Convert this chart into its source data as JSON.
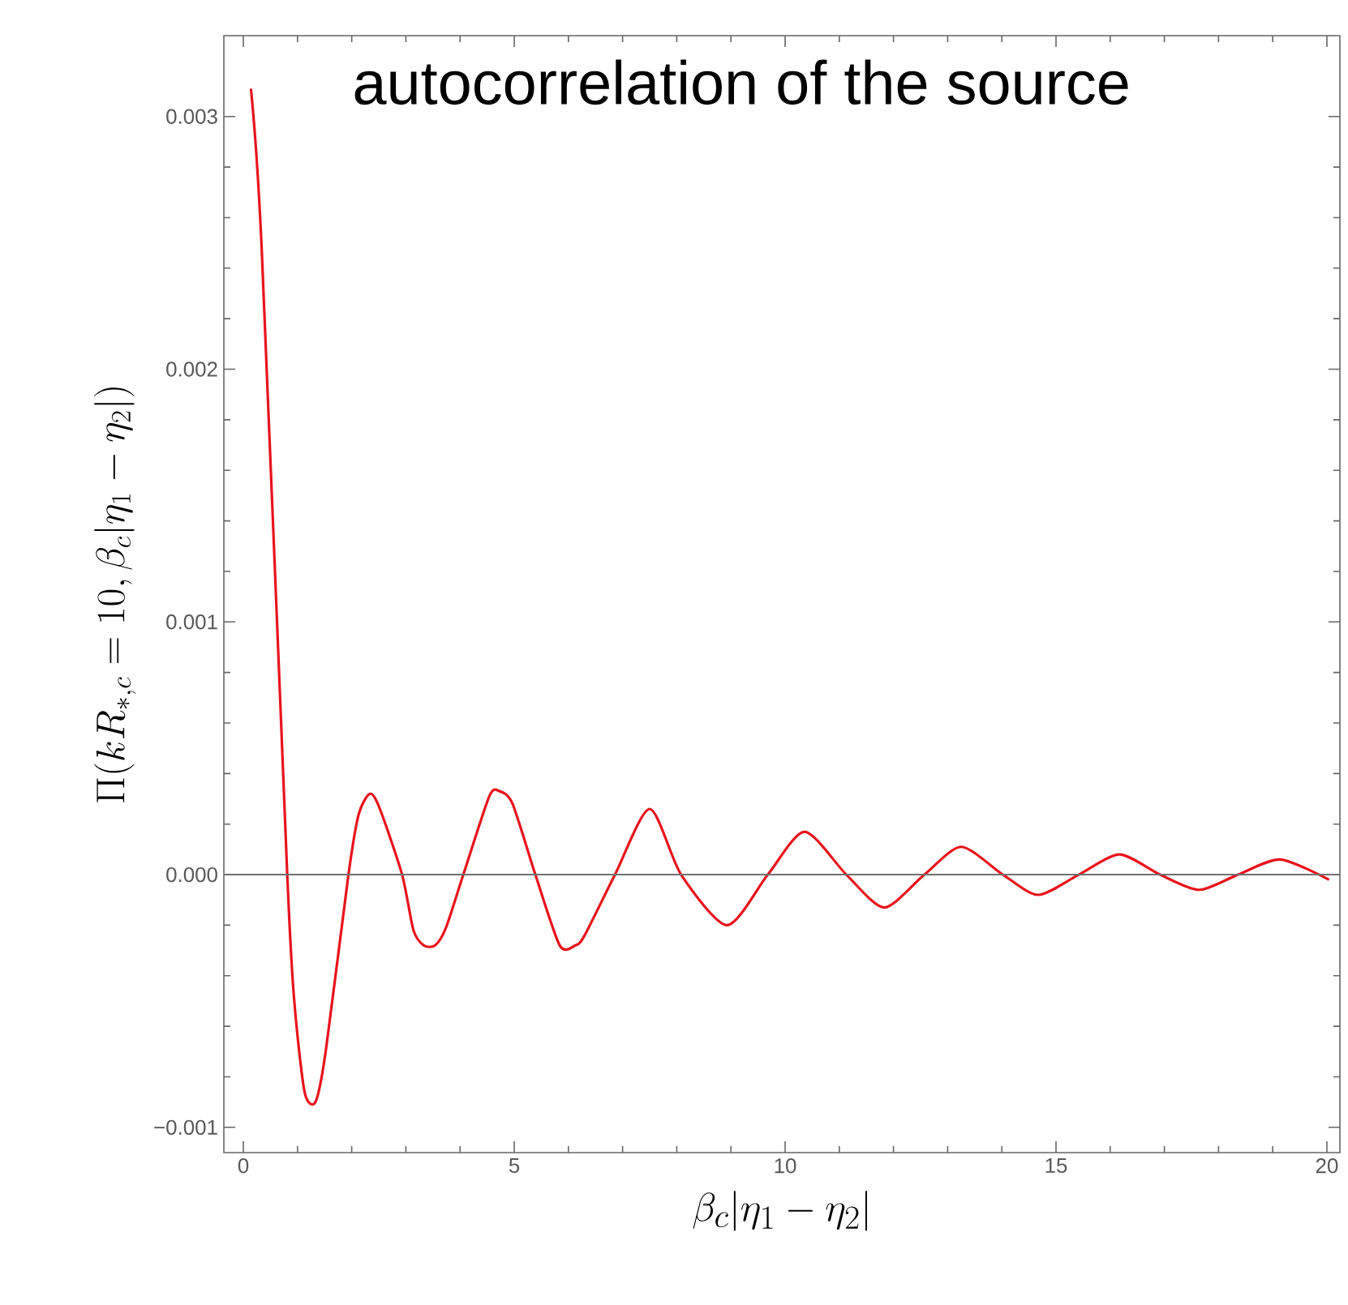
{
  "chart_data": {
    "type": "line",
    "title": "autocorrelation of the source",
    "xlabel": "\\beta_c|\\eta_1 - \\eta_2|",
    "ylabel": "\\Pi(kR_{*,c} = 10, \\beta_c|\\eta_1 - \\eta_2|)",
    "xlim": [
      -0.36,
      20.24
    ],
    "ylim": [
      -0.0011,
      0.00332
    ],
    "xticks": [
      0,
      5,
      10,
      15,
      20
    ],
    "yticks": [
      {
        "value": -0.001,
        "label": "−0.001"
      },
      {
        "value": 0,
        "label": "0.000"
      },
      0.001,
      0.002,
      0.003
    ],
    "ref_lines": [
      {
        "axis": "y",
        "value": 0,
        "color": "#707070"
      }
    ],
    "series": [
      {
        "color": "#e8141c",
        "x": [
          0.14,
          0.34,
          0.81,
          0.94,
          1.13,
          1.33,
          1.52,
          1.94,
          2.13,
          2.34,
          2.52,
          2.93,
          3.14,
          3.33,
          3.54,
          3.74,
          4.06,
          4.54,
          4.73,
          4.97,
          5.39,
          5.84,
          6.13,
          6.3,
          6.86,
          7.5,
          8.08,
          8.93,
          9.68,
          10.36,
          11.13,
          11.83,
          12.57,
          13.25,
          14.02,
          14.67,
          15.42,
          16.17,
          16.92,
          17.64,
          18.36,
          19.14,
          20.04
        ],
        "values": [
          0.00311,
          0.00247,
          0.0,
          -0.0005,
          -0.00086,
          -0.0009,
          -0.0007,
          0.0,
          0.00024,
          0.00032,
          0.00026,
          0.0,
          -0.00022,
          -0.00028,
          -0.00028,
          -0.00021,
          0.0,
          0.00031,
          0.00033,
          0.00028,
          0.0,
          -0.00028,
          -0.00028,
          -0.00024,
          0.0,
          0.00026,
          0.0,
          -0.0002,
          0.0,
          0.00017,
          0.0,
          -0.00013,
          0.0,
          0.00011,
          0.0,
          -8e-05,
          0.0,
          8e-05,
          0.0,
          -6e-05,
          0.0,
          6e-05,
          -2e-05
        ]
      }
    ]
  }
}
